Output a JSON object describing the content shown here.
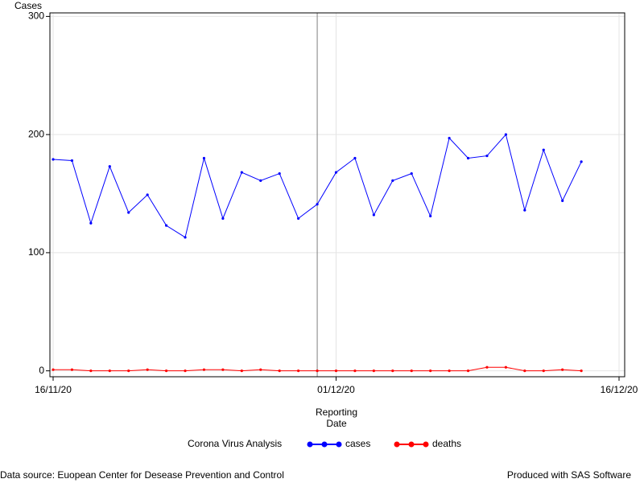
{
  "chart_data": {
    "type": "line",
    "y_label": "Cases",
    "x_label": "Reporting Date",
    "legend_title": "Corona Virus Analysis",
    "footnote_left": "Data source: Euopean Center for Desease Prevention and Control",
    "footnote_right": "Produced with SAS Software",
    "x": [
      "16/11/20",
      "17/11/20",
      "18/11/20",
      "19/11/20",
      "20/11/20",
      "21/11/20",
      "22/11/20",
      "23/11/20",
      "24/11/20",
      "25/11/20",
      "26/11/20",
      "27/11/20",
      "28/11/20",
      "29/11/20",
      "30/11/20",
      "01/12/20",
      "02/12/20",
      "03/12/20",
      "04/12/20",
      "05/12/20",
      "06/12/20",
      "07/12/20",
      "08/12/20",
      "09/12/20",
      "10/12/20",
      "11/12/20",
      "12/12/20",
      "13/12/20",
      "14/12/20"
    ],
    "series": [
      {
        "name": "cases",
        "color": "#0000ff",
        "values": [
          179,
          178,
          125,
          173,
          134,
          149,
          123,
          113,
          180,
          129,
          168,
          161,
          167,
          129,
          141,
          168,
          180,
          132,
          161,
          167,
          131,
          197,
          180,
          182,
          200,
          136,
          187,
          144,
          177
        ]
      },
      {
        "name": "deaths",
        "color": "#ff0000",
        "values": [
          1,
          1,
          0,
          0,
          0,
          1,
          0,
          0,
          1,
          1,
          0,
          1,
          0,
          0,
          0,
          0,
          0,
          0,
          0,
          0,
          0,
          0,
          0,
          3,
          3,
          0,
          0,
          1,
          0
        ]
      }
    ],
    "xlim": [
      "16/11/20",
      "16/12/20"
    ],
    "xticks": [
      "16/11/20",
      "01/12/20",
      "16/12/20"
    ],
    "ylim": [
      -5,
      303
    ],
    "yticks": [
      0,
      100,
      200,
      300
    ],
    "grid": true,
    "reference_line": "30/11/20",
    "legend_position": "bottom"
  }
}
